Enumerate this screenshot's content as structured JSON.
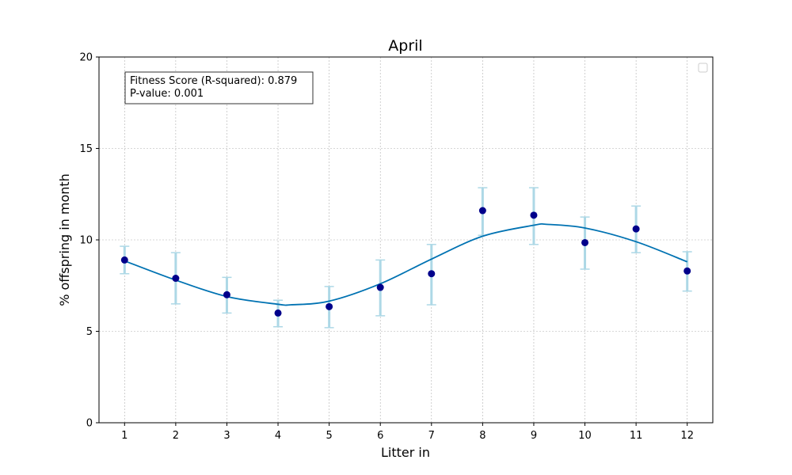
{
  "chart_data": {
    "type": "scatter",
    "title": "April",
    "xlabel": "Litter in",
    "ylabel": "% offspring in month",
    "x": [
      1,
      2,
      3,
      4,
      5,
      6,
      7,
      8,
      9,
      10,
      11,
      12
    ],
    "y": [
      8.9,
      7.9,
      7.0,
      6.0,
      6.35,
      7.4,
      8.15,
      11.6,
      11.35,
      9.85,
      10.6,
      8.3
    ],
    "error_low": [
      8.15,
      6.5,
      6.0,
      5.25,
      5.2,
      5.85,
      6.45,
      10.25,
      9.75,
      8.4,
      9.3,
      7.2
    ],
    "error_high": [
      9.65,
      9.3,
      7.95,
      6.7,
      7.45,
      8.9,
      9.75,
      12.85,
      12.85,
      11.25,
      11.85,
      9.35
    ],
    "fit_curve": {
      "x": [
        1,
        2,
        3,
        4,
        4.25,
        5,
        6,
        7,
        8,
        9,
        9.25,
        10,
        11,
        12
      ],
      "y": [
        8.85,
        7.8,
        6.9,
        6.48,
        6.45,
        6.65,
        7.6,
        8.95,
        10.2,
        10.8,
        10.85,
        10.65,
        9.9,
        8.8
      ]
    },
    "xlim": [
      0.5,
      12.5
    ],
    "ylim": [
      0,
      20
    ],
    "xticks": [
      1,
      2,
      3,
      4,
      5,
      6,
      7,
      8,
      9,
      10,
      11,
      12
    ],
    "yticks": [
      0,
      5,
      10,
      15,
      20
    ],
    "grid": true,
    "legend_position": "top-right",
    "annotation": {
      "line1": "Fitness Score (R-squared): 0.879",
      "line2": "P-value: 0.001"
    },
    "colors": {
      "points": "#00008b",
      "errorbars": "#add8e6",
      "fit_line": "#0072b2",
      "grid": "#b0b0b0"
    }
  }
}
